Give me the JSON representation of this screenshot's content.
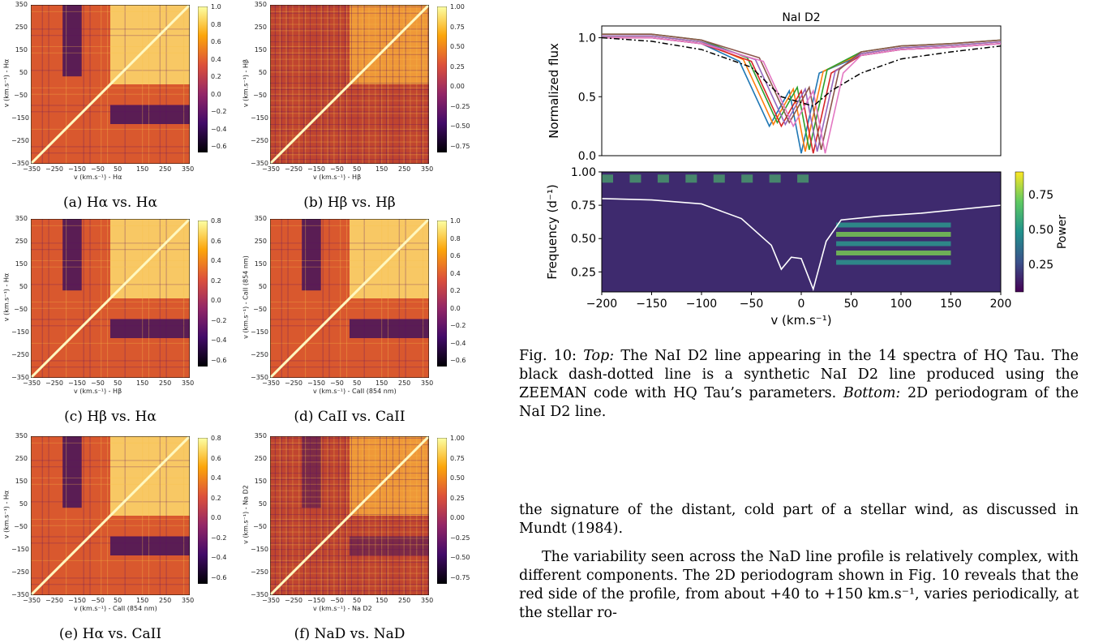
{
  "matrices": [
    {
      "caption": "(a) Hα vs. Hα",
      "xlabel": "v (km.s⁻¹) - Hα",
      "ylabel": "v (km.s⁻¹) - Hα",
      "cbar": [
        "1.0",
        "0.8",
        "0.6",
        "0.4",
        "0.2",
        "0.0",
        "−0.2",
        "−0.4",
        "−0.6"
      ]
    },
    {
      "caption": "(b) Hβ vs. Hβ",
      "xlabel": "v (km.s⁻¹) - Hβ",
      "ylabel": "v (km.s⁻¹) - Hβ",
      "cbar": [
        "1.00",
        "0.75",
        "0.50",
        "0.25",
        "0.00",
        "−0.25",
        "−0.50",
        "−0.75"
      ]
    },
    {
      "caption": "(c) Hβ vs. Hα",
      "xlabel": "v (km.s⁻¹) - Hβ",
      "ylabel": "v (km.s⁻¹) - Hα",
      "cbar": [
        "0.8",
        "0.6",
        "0.4",
        "0.2",
        "0.0",
        "−0.2",
        "−0.4",
        "−0.6"
      ]
    },
    {
      "caption": "(d) CaII vs. CaII",
      "xlabel": "v (km.s⁻¹) - CaII (854 nm)",
      "ylabel": "v (km.s⁻¹) - CaII (854 nm)",
      "cbar": [
        "1.0",
        "0.8",
        "0.6",
        "0.4",
        "0.2",
        "0.0",
        "−0.2",
        "−0.4",
        "−0.6"
      ]
    },
    {
      "caption": "(e) Hα vs. CaII",
      "xlabel": "v (km.s⁻¹) - CaII (854 nm)",
      "ylabel": "v (km.s⁻¹) - Hα",
      "cbar": [
        "0.8",
        "0.6",
        "0.4",
        "0.2",
        "0.0",
        "−0.2",
        "−0.4",
        "−0.6"
      ]
    },
    {
      "caption": "(f) NaD vs. NaD",
      "xlabel": "v (km.s⁻¹) - Na D2",
      "ylabel": "v (km.s⁻¹) - Na D2",
      "cbar": [
        "1.00",
        "0.75",
        "0.50",
        "0.25",
        "0.00",
        "−0.25",
        "−0.50",
        "−0.75"
      ]
    }
  ],
  "matrix_axis_ticks": [
    "350",
    "250",
    "150",
    "50",
    "−50",
    "−150",
    "−250",
    "−350"
  ],
  "matrix_x_ticks": [
    "−350",
    "−250",
    "−150",
    "−50",
    "50",
    "150",
    "250",
    "350"
  ],
  "chart_data": [
    {
      "type": "line",
      "title": "NaI D2",
      "ylabel": "Normalized flux",
      "xlim": [
        -200,
        200
      ],
      "ylim": [
        0.0,
        1.1
      ],
      "yticks": [
        "1.0",
        "0.5",
        "0.0"
      ],
      "series": [
        {
          "name": "",
          "x": [
            -200,
            -150,
            -100,
            -50,
            -20,
            0,
            12,
            30,
            60,
            100,
            150,
            200
          ],
          "y": [
            1.0,
            1.0,
            0.95,
            0.8,
            0.25,
            0.55,
            0.02,
            0.7,
            0.85,
            0.9,
            0.92,
            0.95
          ]
        },
        {
          "name": "",
          "x": [
            -200,
            -150,
            -100,
            -50,
            -20,
            0,
            12,
            30,
            60,
            100,
            150,
            200
          ],
          "y": [
            1.0,
            0.97,
            0.9,
            0.75,
            0.5,
            0.45,
            0.42,
            0.55,
            0.7,
            0.82,
            0.88,
            0.93
          ]
        }
      ]
    },
    {
      "type": "heatmap",
      "xlabel": "v (km.s⁻¹)",
      "ylabel": "Frequency (d⁻¹)",
      "xticks": [
        "−200",
        "−150",
        "−100",
        "−50",
        "0",
        "50",
        "100",
        "150",
        "200"
      ],
      "yticks": [
        "1.00",
        "0.75",
        "0.50",
        "0.25"
      ],
      "xlim": [
        -200,
        200
      ],
      "ylim": [
        0.1,
        1.0
      ],
      "colorbar_label": "Power",
      "colorbar_ticks": [
        "0.75",
        "0.50",
        "0.25"
      ]
    }
  ],
  "fig10": {
    "caption_num": "Fig. 10:",
    "top_label": "Top:",
    "top_text": " The NaI D2 line appearing in the 14 spectra of HQ Tau. The black dash-dotted line is a synthetic NaI D2 line produced using the ZEEMAN code with HQ Tau’s parameters.",
    "bottom_label": "Bottom:",
    "bottom_text": " 2D periodogram of the NaI D2 line."
  },
  "body": {
    "p1": "the signature of the distant, cold part of a stellar wind, as discussed in Mundt (1984).",
    "p2": "The variability seen across the NaD line profile is relatively complex, with different components. The 2D periodogram shown in Fig. 10 reveals that the red side of the profile, from about +40 to +150 km.s⁻¹, varies periodically, at the stellar ro-"
  },
  "colors": {
    "inferno_dark": "#1b0c41",
    "inferno_mid": "#bb3754",
    "inferno_light": "#fcffa4",
    "viridis_dark": "#440154",
    "viridis_mid": "#21918c",
    "viridis_light": "#fde725"
  }
}
